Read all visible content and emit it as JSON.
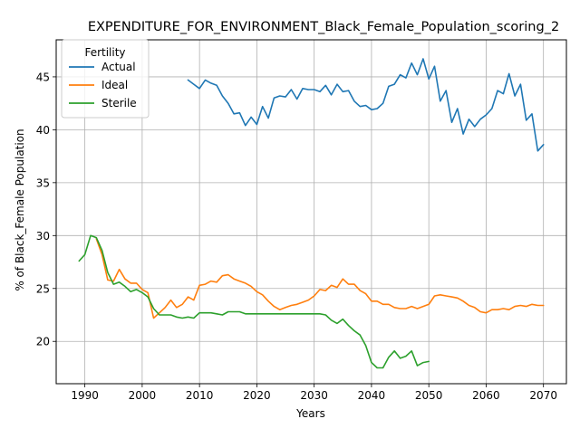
{
  "chart_data": {
    "type": "line",
    "title": "EXPENDITURE_FOR_ENVIRONMENT_Black_Female_Population_scoring_2",
    "xlabel": "Years",
    "ylabel": "% of Black_Female Population",
    "xlim": [
      1985,
      2074
    ],
    "ylim": [
      16,
      48.5
    ],
    "xticks": [
      1990,
      2000,
      2010,
      2020,
      2030,
      2040,
      2050,
      2060,
      2070
    ],
    "yticks": [
      20,
      25,
      30,
      35,
      40,
      45
    ],
    "grid": true,
    "legend": {
      "title": "Fertility",
      "position": "top-left"
    },
    "colors": {
      "Actual": "#1f77b4",
      "Ideal": "#ff7f0e",
      "Sterile": "#2ca02c"
    },
    "series": [
      {
        "name": "Actual",
        "x": [
          2008,
          2009,
          2010,
          2011,
          2012,
          2013,
          2014,
          2015,
          2016,
          2017,
          2018,
          2019,
          2020,
          2021,
          2022,
          2023,
          2024,
          2025,
          2026,
          2027,
          2028,
          2029,
          2030,
          2031,
          2032,
          2033,
          2034,
          2035,
          2036,
          2037,
          2038,
          2039,
          2040,
          2041,
          2042,
          2043,
          2044,
          2045,
          2046,
          2047,
          2048,
          2049,
          2050,
          2051,
          2052,
          2053,
          2054,
          2055,
          2056,
          2057,
          2058,
          2059,
          2060,
          2061,
          2062,
          2063,
          2064,
          2065,
          2066,
          2067,
          2068,
          2069,
          2070
        ],
        "values": [
          44.7,
          44.3,
          43.9,
          44.7,
          44.4,
          44.2,
          43.2,
          42.5,
          41.5,
          41.6,
          40.4,
          41.2,
          40.5,
          42.2,
          41.1,
          43.0,
          43.2,
          43.1,
          43.8,
          42.9,
          43.9,
          43.8,
          43.8,
          43.6,
          44.2,
          43.3,
          44.3,
          43.6,
          43.7,
          42.7,
          42.2,
          42.3,
          41.9,
          42.0,
          42.5,
          44.1,
          44.3,
          45.2,
          44.9,
          46.3,
          45.2,
          46.7,
          44.8,
          46.0,
          42.7,
          43.7,
          40.7,
          42.0,
          39.6,
          41.0,
          40.3,
          41.0,
          41.4,
          42.0,
          43.7,
          43.4,
          45.3,
          43.2,
          44.3,
          40.9,
          41.5,
          38.0,
          38.6
        ]
      },
      {
        "name": "Ideal",
        "x": [
          1992,
          1993,
          1994,
          1995,
          1996,
          1997,
          1998,
          1999,
          2000,
          2001,
          2002,
          2003,
          2004,
          2005,
          2006,
          2007,
          2008,
          2009,
          2010,
          2011,
          2012,
          2013,
          2014,
          2015,
          2016,
          2017,
          2018,
          2019,
          2020,
          2021,
          2022,
          2023,
          2024,
          2025,
          2026,
          2027,
          2028,
          2029,
          2030,
          2031,
          2032,
          2033,
          2034,
          2035,
          2036,
          2037,
          2038,
          2039,
          2040,
          2041,
          2042,
          2043,
          2044,
          2045,
          2046,
          2047,
          2048,
          2049,
          2050,
          2051,
          2052,
          2053,
          2054,
          2055,
          2056,
          2057,
          2058,
          2059,
          2060,
          2061,
          2062,
          2063,
          2064,
          2065,
          2066,
          2067,
          2068,
          2069,
          2070
        ],
        "values": [
          29.7,
          28.2,
          25.8,
          25.7,
          26.8,
          25.9,
          25.5,
          25.5,
          24.9,
          24.6,
          22.2,
          22.7,
          23.2,
          23.9,
          23.2,
          23.5,
          24.2,
          23.9,
          25.3,
          25.4,
          25.7,
          25.6,
          26.2,
          26.3,
          25.9,
          25.7,
          25.5,
          25.2,
          24.7,
          24.4,
          23.8,
          23.3,
          23.0,
          23.2,
          23.4,
          23.5,
          23.7,
          23.9,
          24.3,
          24.9,
          24.8,
          25.3,
          25.1,
          25.9,
          25.4,
          25.4,
          24.8,
          24.5,
          23.8,
          23.8,
          23.5,
          23.5,
          23.2,
          23.1,
          23.1,
          23.3,
          23.1,
          23.3,
          23.5,
          24.3,
          24.4,
          24.3,
          24.2,
          24.1,
          23.8,
          23.4,
          23.2,
          22.8,
          22.7,
          23.0,
          23.0,
          23.1,
          23.0,
          23.3,
          23.4,
          23.3,
          23.5,
          23.4,
          23.4
        ]
      },
      {
        "name": "Sterile",
        "x": [
          1989,
          1990,
          1991,
          1992,
          1993,
          1994,
          1995,
          1996,
          1997,
          1998,
          1999,
          2000,
          2001,
          2002,
          2003,
          2004,
          2005,
          2006,
          2007,
          2008,
          2009,
          2010,
          2011,
          2012,
          2013,
          2014,
          2015,
          2016,
          2017,
          2018,
          2019,
          2020,
          2021,
          2022,
          2023,
          2024,
          2025,
          2026,
          2027,
          2028,
          2029,
          2030,
          2031,
          2032,
          2033,
          2034,
          2035,
          2036,
          2037,
          2038,
          2039,
          2040,
          2041,
          2042,
          2043,
          2044,
          2045,
          2046,
          2047,
          2048,
          2049,
          2050
        ],
        "values": [
          27.6,
          28.2,
          30.0,
          29.8,
          28.6,
          26.5,
          25.4,
          25.6,
          25.2,
          24.7,
          24.9,
          24.6,
          24.2,
          23.1,
          22.5,
          22.5,
          22.5,
          22.3,
          22.2,
          22.3,
          22.2,
          22.7,
          22.7,
          22.7,
          22.6,
          22.5,
          22.8,
          22.8,
          22.8,
          22.6,
          22.6,
          22.6,
          22.6,
          22.6,
          22.6,
          22.6,
          22.6,
          22.6,
          22.6,
          22.6,
          22.6,
          22.6,
          22.6,
          22.5,
          22.0,
          21.7,
          22.1,
          21.5,
          21.0,
          20.6,
          19.6,
          18.0,
          17.5,
          17.5,
          18.5,
          19.1,
          18.4,
          18.6,
          19.1,
          17.7,
          18.0,
          18.1
        ]
      }
    ]
  }
}
